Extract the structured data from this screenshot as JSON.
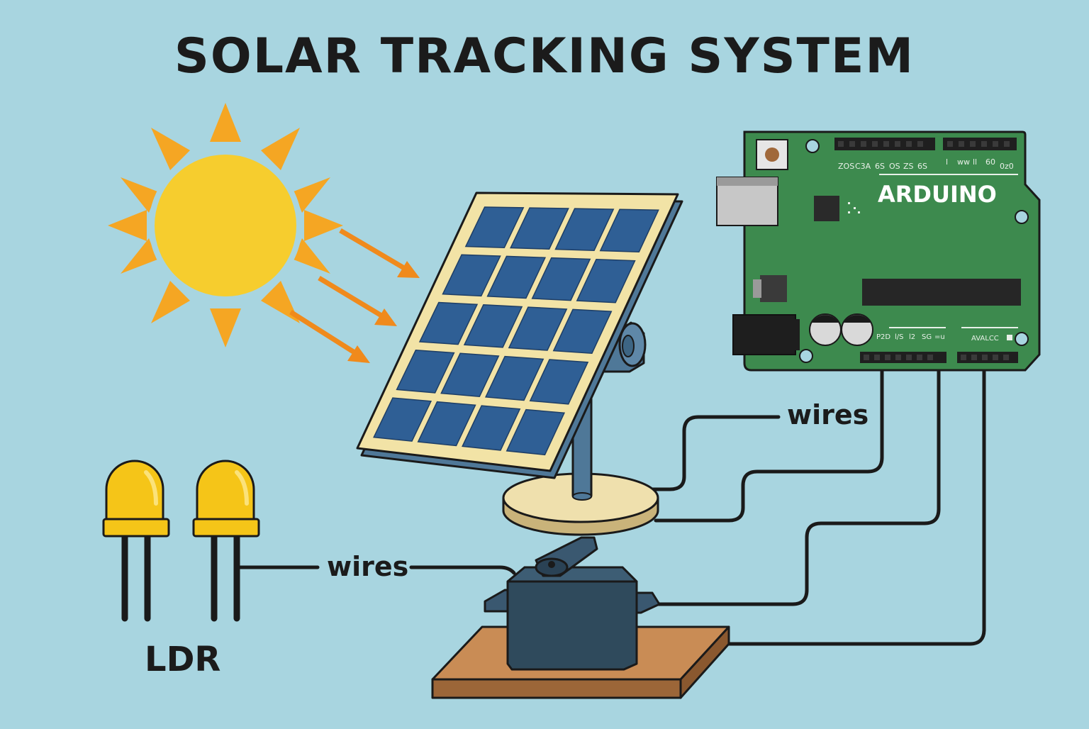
{
  "title": "SOLAR TRACKING SYSTEM",
  "labels": {
    "arduino": "ARDUINO",
    "wires_top": "wires",
    "wires_bottom": "wires",
    "ldr": "LDR",
    "analog_header": "AVALCC"
  },
  "colors": {
    "background": "#a8d5e0",
    "sun": "#f6cd2e",
    "sun_rays": "#f5a623",
    "light_arrows": "#f08a1c",
    "panel_cell": "#2f5f95",
    "panel_frame": "#f2e3a6",
    "arduino_board": "#3d8a4e",
    "servo": "#2f4a5c",
    "base_wood": "#b67c4d",
    "ldr": "#f5c518",
    "wire": "#1a1a1a"
  }
}
